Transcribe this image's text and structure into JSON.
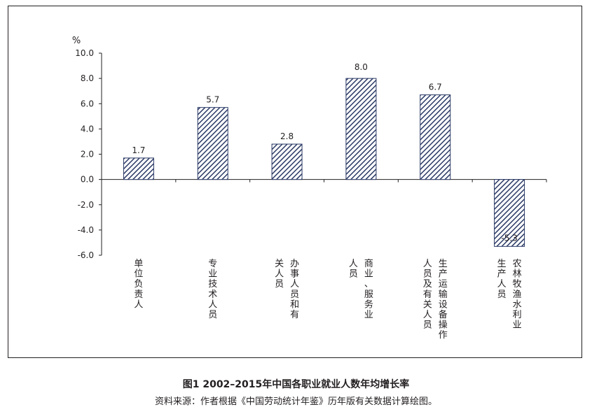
{
  "chart_data": {
    "type": "bar",
    "unit": "%",
    "categories": [
      "单位负责人",
      "专业技术人员",
      "办事人员和有关人员",
      "商业、服务业人员",
      "生产运输设备操作人员及有关人员",
      "农林牧渔水利业生产人员"
    ],
    "category_lines": [
      [
        "单位负责人"
      ],
      [
        "专业技术人员"
      ],
      [
        "办事人员和有",
        "关人员"
      ],
      [
        "商业、服务业",
        "人员"
      ],
      [
        "生产运输设备操作",
        "人员及有关人员"
      ],
      [
        "农林牧渔水利业",
        "生产人员"
      ]
    ],
    "values": [
      1.7,
      5.7,
      2.8,
      8.0,
      6.7,
      -5.3
    ],
    "value_labels": [
      "1.7",
      "5.7",
      "2.8",
      "8.0",
      "6.7",
      "-5.3"
    ],
    "yticks": [
      "10.0",
      "8.0",
      "6.0",
      "4.0",
      "2.0",
      "0.0",
      "-2.0",
      "-4.0",
      "-6.0"
    ],
    "ylim": [
      -6,
      10
    ],
    "bar_color": "#2b3a66",
    "bar_pattern": "diagonal-hatch",
    "grid": false,
    "legend": "none"
  },
  "caption": "图1  2002–2015年中国各职业就业人数年均增长率",
  "source": "资料来源：作者根据《中国劳动统计年鉴》历年版有关数据计算绘图。"
}
